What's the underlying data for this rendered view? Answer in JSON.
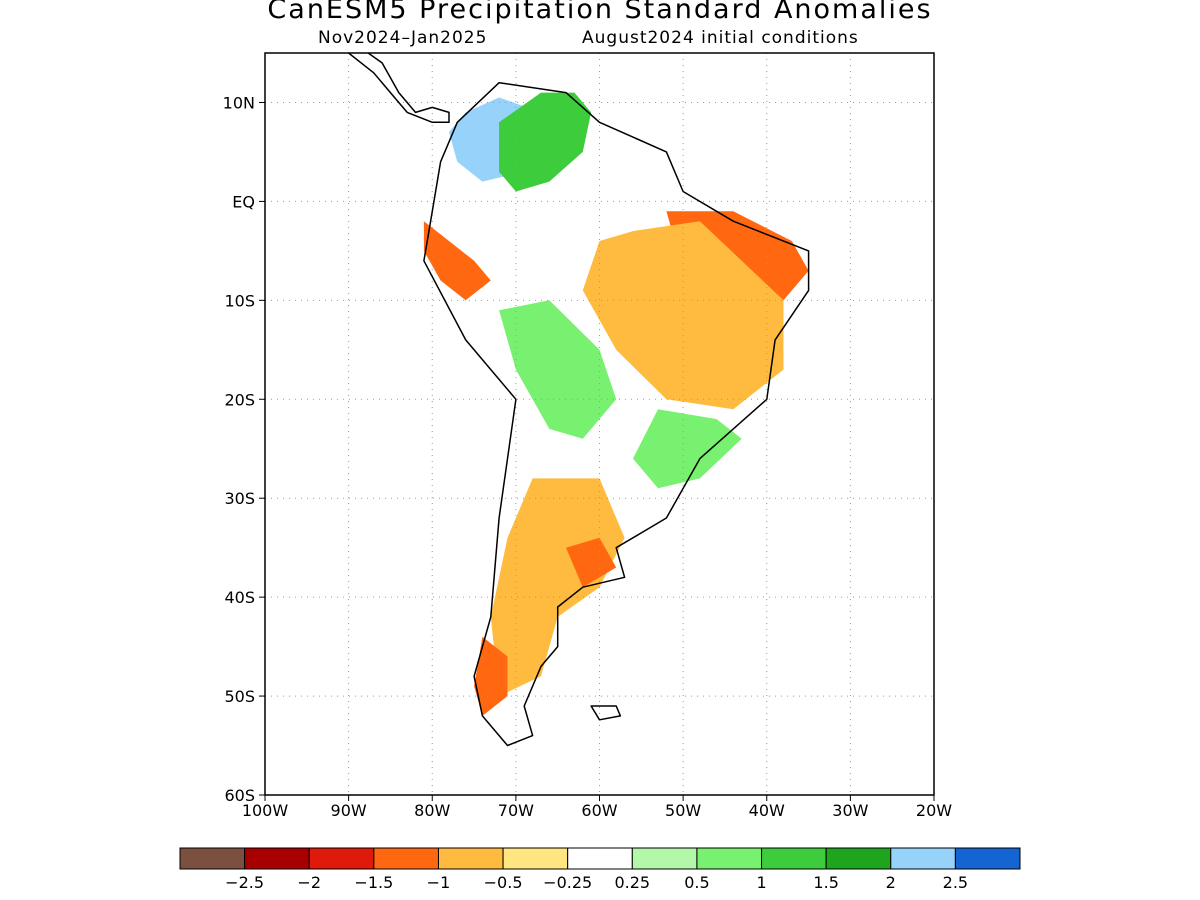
{
  "title": "CanESM5 Precipitation Standard Anomalies",
  "subtitle_left": "Nov2024–Jan2025",
  "subtitle_right": "August2024 initial conditions",
  "map": {
    "lon_range": [
      -100,
      -20
    ],
    "lat_range": [
      -60,
      15
    ],
    "lon_ticks": [
      {
        "value": -100,
        "label": "100W"
      },
      {
        "value": -90,
        "label": "90W"
      },
      {
        "value": -80,
        "label": "80W"
      },
      {
        "value": -70,
        "label": "70W"
      },
      {
        "value": -60,
        "label": "60W"
      },
      {
        "value": -50,
        "label": "50W"
      },
      {
        "value": -40,
        "label": "40W"
      },
      {
        "value": -30,
        "label": "30W"
      },
      {
        "value": -20,
        "label": "20W"
      }
    ],
    "lat_ticks": [
      {
        "value": 10,
        "label": "10N"
      },
      {
        "value": 0,
        "label": "EQ"
      },
      {
        "value": -10,
        "label": "10S"
      },
      {
        "value": -20,
        "label": "20S"
      },
      {
        "value": -30,
        "label": "30S"
      },
      {
        "value": -40,
        "label": "40S"
      },
      {
        "value": -50,
        "label": "50S"
      },
      {
        "value": -60,
        "label": "60S"
      }
    ]
  },
  "colorbar": {
    "colors": [
      "#7b5040",
      "#a80000",
      "#e01a0a",
      "#ff6810",
      "#ffbb40",
      "#ffe680",
      "#ffffff",
      "#b3f7a8",
      "#78f070",
      "#3ccc3c",
      "#1ea51e",
      "#96d2fa",
      "#1464d2"
    ],
    "labels": [
      "−2.5",
      "−2",
      "−1.5",
      "−1",
      "−0.5",
      "−0.25",
      "0.25",
      "0.5",
      "1",
      "1.5",
      "2",
      "2.5"
    ]
  },
  "anomaly_regions": [
    {
      "name": "northern-andes-wet",
      "category": 11,
      "lonlat": [
        [
          -76,
          9
        ],
        [
          -72,
          10.5
        ],
        [
          -67,
          9
        ],
        [
          -65,
          6
        ],
        [
          -69,
          3
        ],
        [
          -74,
          2
        ],
        [
          -77,
          4
        ],
        [
          -78,
          7
        ]
      ]
    },
    {
      "name": "venezuela-wet",
      "category": 9,
      "lonlat": [
        [
          -67,
          11
        ],
        [
          -63,
          11
        ],
        [
          -61,
          9
        ],
        [
          -62,
          5
        ],
        [
          -66,
          2
        ],
        [
          -70,
          1
        ],
        [
          -72,
          3
        ],
        [
          -72,
          8
        ]
      ]
    },
    {
      "name": "nw-amazon-dry",
      "category": 3,
      "lonlat": [
        [
          -81,
          -2
        ],
        [
          -78,
          -4
        ],
        [
          -75,
          -6
        ],
        [
          -73,
          -8
        ],
        [
          -76,
          -10
        ],
        [
          -79,
          -8
        ],
        [
          -81,
          -5
        ]
      ]
    },
    {
      "name": "ne-brazil-dry",
      "category": 3,
      "lonlat": [
        [
          -52,
          -1
        ],
        [
          -44,
          -1
        ],
        [
          -37,
          -4
        ],
        [
          -35,
          -7
        ],
        [
          -38,
          -10
        ],
        [
          -44,
          -10
        ],
        [
          -48,
          -8
        ],
        [
          -51,
          -4
        ]
      ]
    },
    {
      "name": "central-brazil-dry",
      "category": 4,
      "lonlat": [
        [
          -56,
          -3
        ],
        [
          -48,
          -2
        ],
        [
          -38,
          -10
        ],
        [
          -38,
          -17
        ],
        [
          -44,
          -21
        ],
        [
          -52,
          -20
        ],
        [
          -58,
          -15
        ],
        [
          -62,
          -9
        ],
        [
          -60,
          -4
        ]
      ]
    },
    {
      "name": "bolivia-wet",
      "category": 8,
      "lonlat": [
        [
          -72,
          -11
        ],
        [
          -66,
          -10
        ],
        [
          -60,
          -15
        ],
        [
          -58,
          -20
        ],
        [
          -62,
          -24
        ],
        [
          -66,
          -23
        ],
        [
          -70,
          -17
        ]
      ]
    },
    {
      "name": "southeast-brazil-wet",
      "category": 8,
      "lonlat": [
        [
          -53,
          -21
        ],
        [
          -46,
          -22
        ],
        [
          -43,
          -24
        ],
        [
          -48,
          -28
        ],
        [
          -53,
          -29
        ],
        [
          -56,
          -26
        ]
      ]
    },
    {
      "name": "argentina-dry",
      "category": 4,
      "lonlat": [
        [
          -68,
          -28
        ],
        [
          -60,
          -28
        ],
        [
          -57,
          -34
        ],
        [
          -60,
          -39
        ],
        [
          -65,
          -42
        ],
        [
          -67,
          -48
        ],
        [
          -72,
          -50
        ],
        [
          -73,
          -42
        ],
        [
          -71,
          -34
        ]
      ]
    },
    {
      "name": "patagonia-dry",
      "category": 3,
      "lonlat": [
        [
          -74,
          -44
        ],
        [
          -71,
          -46
        ],
        [
          -71,
          -50
        ],
        [
          -74,
          -52
        ],
        [
          -75,
          -49
        ]
      ]
    },
    {
      "name": "pampas-dry",
      "category": 3,
      "lonlat": [
        [
          -64,
          -35
        ],
        [
          -60,
          -34
        ],
        [
          -58,
          -37
        ],
        [
          -62,
          -39
        ]
      ]
    }
  ],
  "coastlines": [
    {
      "name": "south-america",
      "lonlat": [
        [
          -77,
          8
        ],
        [
          -72,
          12
        ],
        [
          -64,
          11
        ],
        [
          -60,
          8
        ],
        [
          -52,
          5
        ],
        [
          -50,
          1
        ],
        [
          -44,
          -2
        ],
        [
          -35,
          -5
        ],
        [
          -35,
          -9
        ],
        [
          -39,
          -14
        ],
        [
          -40,
          -20
        ],
        [
          -44,
          -23
        ],
        [
          -48,
          -26
        ],
        [
          -52,
          -32
        ],
        [
          -58,
          -35
        ],
        [
          -57,
          -38
        ],
        [
          -62,
          -39
        ],
        [
          -65,
          -41
        ],
        [
          -65,
          -45
        ],
        [
          -67,
          -47
        ],
        [
          -69,
          -51
        ],
        [
          -68,
          -54
        ],
        [
          -71,
          -55
        ],
        [
          -74,
          -52
        ],
        [
          -75,
          -48
        ],
        [
          -73,
          -42
        ],
        [
          -72,
          -32
        ],
        [
          -70,
          -20
        ],
        [
          -76,
          -14
        ],
        [
          -81,
          -6
        ],
        [
          -80,
          -1
        ],
        [
          -79,
          4
        ]
      ]
    },
    {
      "name": "central-america",
      "lonlat": [
        [
          -90,
          15
        ],
        [
          -87,
          13
        ],
        [
          -85,
          11
        ],
        [
          -83,
          9
        ],
        [
          -80,
          8
        ],
        [
          -78,
          8
        ],
        [
          -78,
          9
        ],
        [
          -80,
          9.5
        ],
        [
          -82,
          9
        ],
        [
          -84,
          11
        ],
        [
          -86,
          14
        ],
        [
          -89,
          15.8
        ]
      ]
    },
    {
      "name": "falkland-islands",
      "lonlat": [
        [
          -61,
          -51
        ],
        [
          -58,
          -51
        ],
        [
          -57.5,
          -52
        ],
        [
          -60,
          -52.4
        ]
      ]
    }
  ]
}
